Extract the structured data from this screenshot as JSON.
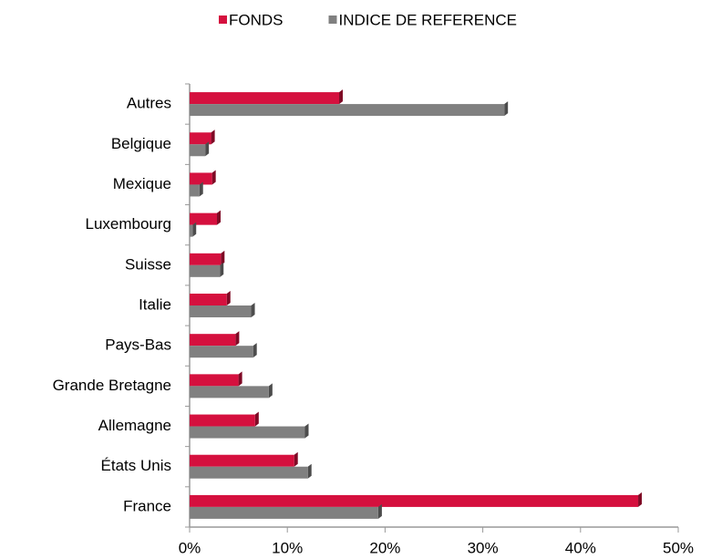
{
  "chart_data": {
    "type": "hbar",
    "categories": [
      "Autres",
      "Belgique",
      "Mexique",
      "Luxembourg",
      "Suisse",
      "Italie",
      "Pays-Bas",
      "Grande Bretagne",
      "Allemagne",
      "États Unis",
      "France"
    ],
    "series": [
      {
        "name": "FONDS",
        "color": "#d5103e",
        "values": [
          15.3,
          2.2,
          2.3,
          2.8,
          3.2,
          3.8,
          4.7,
          5.0,
          6.7,
          10.7,
          45.9
        ]
      },
      {
        "name": "INDICE DE REFERENCE",
        "color": "#808080",
        "values": [
          32.2,
          1.6,
          1.0,
          0.3,
          3.1,
          6.3,
          6.5,
          8.1,
          11.8,
          12.1,
          19.3
        ]
      }
    ],
    "xlim": [
      0,
      50
    ],
    "xticks": [
      {
        "value": 0,
        "label": "0%"
      },
      {
        "value": 10,
        "label": "10%"
      },
      {
        "value": 20,
        "label": "20%"
      },
      {
        "value": 30,
        "label": "30%"
      },
      {
        "value": 40,
        "label": "40%"
      },
      {
        "value": 50,
        "label": "50%"
      }
    ],
    "legend": "top"
  }
}
